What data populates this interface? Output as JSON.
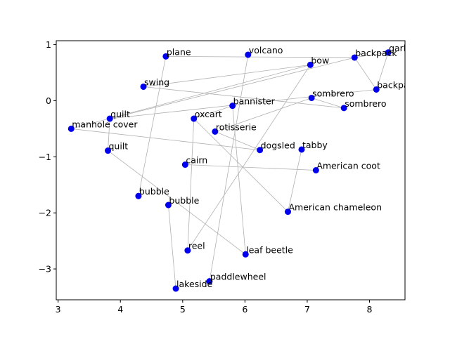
{
  "chart_data": {
    "type": "scatter",
    "title": "",
    "xlabel": "",
    "ylabel": "",
    "xlim": [
      2.97,
      8.57
    ],
    "ylim": [
      -3.55,
      1.07
    ],
    "xticks": [
      3,
      4,
      5,
      6,
      7,
      8
    ],
    "yticks": [
      -3,
      -2,
      -1,
      0,
      1
    ],
    "grid": false,
    "colors": {
      "point": "#0000ee",
      "edge": "#b0b0b0",
      "axis": "#000000"
    },
    "points": [
      {
        "label": "garbage truck",
        "x": 8.3,
        "y": 0.86
      },
      {
        "label": "backpack",
        "x": 7.76,
        "y": 0.77
      },
      {
        "label": "volcano",
        "x": 6.05,
        "y": 0.82
      },
      {
        "label": "plane",
        "x": 4.73,
        "y": 0.79
      },
      {
        "label": "bow",
        "x": 7.05,
        "y": 0.64
      },
      {
        "label": "swing",
        "x": 4.37,
        "y": 0.25
      },
      {
        "label": "backpack",
        "x": 8.11,
        "y": 0.2
      },
      {
        "label": "sombrero",
        "x": 7.07,
        "y": 0.05
      },
      {
        "label": "sombrero",
        "x": 7.59,
        "y": -0.13
      },
      {
        "label": "bannister",
        "x": 5.8,
        "y": -0.09
      },
      {
        "label": "quilt",
        "x": 3.83,
        "y": -0.32
      },
      {
        "label": "oxcart",
        "x": 5.18,
        "y": -0.32
      },
      {
        "label": "manhole cover",
        "x": 3.21,
        "y": -0.5
      },
      {
        "label": "rotisserie",
        "x": 5.52,
        "y": -0.55
      },
      {
        "label": "quilt",
        "x": 3.8,
        "y": -0.89
      },
      {
        "label": "dogsled",
        "x": 6.24,
        "y": -0.88
      },
      {
        "label": "tabby",
        "x": 6.91,
        "y": -0.87
      },
      {
        "label": "cairn",
        "x": 5.04,
        "y": -1.14
      },
      {
        "label": "American coot",
        "x": 7.14,
        "y": -1.24
      },
      {
        "label": "bubble",
        "x": 4.29,
        "y": -1.7
      },
      {
        "label": "bubble",
        "x": 4.77,
        "y": -1.86
      },
      {
        "label": "American chameleon",
        "x": 6.69,
        "y": -1.98
      },
      {
        "label": "reel",
        "x": 5.08,
        "y": -2.67
      },
      {
        "label": "leaf beetle",
        "x": 6.01,
        "y": -2.74
      },
      {
        "label": "paddlewheel",
        "x": 5.43,
        "y": -3.22
      },
      {
        "label": "lakeside",
        "x": 4.89,
        "y": -3.35
      }
    ],
    "edges": [
      [
        3,
        1
      ],
      [
        1,
        0
      ],
      [
        0,
        6
      ],
      [
        1,
        6
      ],
      [
        1,
        10
      ],
      [
        2,
        24
      ],
      [
        3,
        19
      ],
      [
        4,
        5
      ],
      [
        4,
        22
      ],
      [
        4,
        12
      ],
      [
        5,
        8
      ],
      [
        7,
        8
      ],
      [
        7,
        13
      ],
      [
        9,
        11
      ],
      [
        9,
        23
      ],
      [
        10,
        6
      ],
      [
        11,
        21
      ],
      [
        11,
        22
      ],
      [
        12,
        15
      ],
      [
        13,
        15
      ],
      [
        14,
        10
      ],
      [
        14,
        23
      ],
      [
        16,
        21
      ],
      [
        17,
        18
      ],
      [
        20,
        25
      ]
    ]
  }
}
